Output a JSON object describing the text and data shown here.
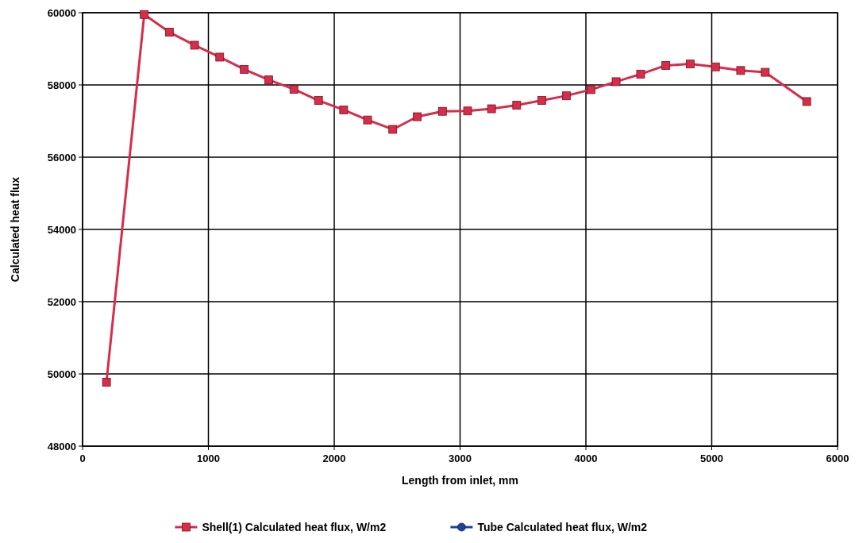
{
  "chart_data": {
    "type": "line",
    "xlabel": "Length from inlet, mm",
    "ylabel": "Calculated heat flux",
    "xlim": [
      0,
      6000
    ],
    "xticks": [
      0,
      1000,
      2000,
      3000,
      4000,
      5000,
      6000
    ],
    "ylim": [
      48000,
      60000
    ],
    "yticks": [
      48000,
      50000,
      52000,
      54000,
      56000,
      58000,
      60000
    ],
    "grid": true,
    "legend": "bottom",
    "x": [
      190,
      490,
      690,
      890,
      1090,
      1285,
      1480,
      1680,
      1875,
      2075,
      2265,
      2465,
      2660,
      2860,
      3060,
      3250,
      3450,
      3650,
      3845,
      4040,
      4240,
      4435,
      4635,
      4830,
      5030,
      5230,
      5425,
      5755
    ],
    "series": [
      {
        "name": "Shell(1) Calculated heat flux, W/m2",
        "color": "#d62d4a",
        "marker": "square",
        "values": [
          49770,
          59950,
          59460,
          59100,
          58770,
          58430,
          58140,
          57880,
          57570,
          57310,
          57030,
          56770,
          57120,
          57270,
          57280,
          57340,
          57440,
          57570,
          57700,
          57870,
          58090,
          58300,
          58540,
          58580,
          58500,
          58400,
          58350,
          57540
        ]
      },
      {
        "name": "Tube Calculated heat flux, W/m2",
        "color": "#2040a0",
        "marker": "circle",
        "values": [
          null,
          null,
          null,
          null,
          null,
          null,
          null,
          null,
          null,
          null,
          null,
          null,
          null,
          null,
          null,
          null,
          null,
          null,
          null,
          null,
          null,
          null,
          null,
          null,
          null,
          null,
          null,
          null
        ]
      }
    ]
  }
}
